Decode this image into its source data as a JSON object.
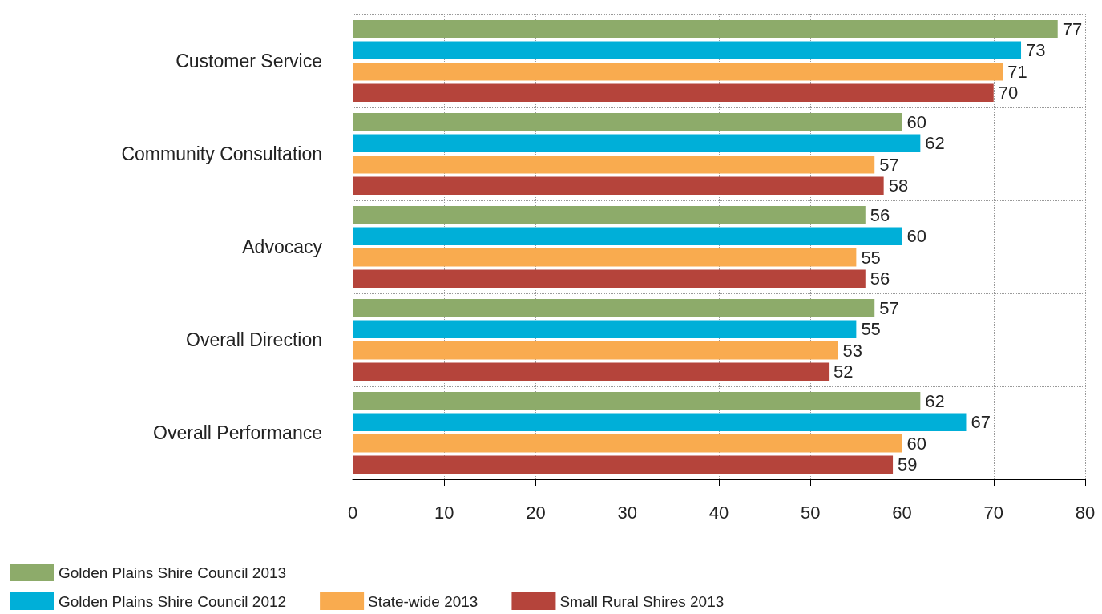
{
  "chart_data": {
    "type": "bar",
    "orientation": "horizontal",
    "categories": [
      "Customer Service",
      "Community Consultation",
      "Advocacy",
      "Overall Direction",
      "Overall Performance"
    ],
    "series": [
      {
        "name": "Golden Plains Shire Council 2013",
        "color": "#8dab6a",
        "values": [
          77,
          60,
          56,
          57,
          62
        ]
      },
      {
        "name": "Golden Plains Shire Council 2012",
        "color": "#00afd8",
        "values": [
          73,
          62,
          60,
          55,
          67
        ]
      },
      {
        "name": "State-wide 2013",
        "color": "#f9ab4f",
        "values": [
          71,
          57,
          55,
          53,
          60
        ]
      },
      {
        "name": "Small Rural Shires 2013",
        "color": "#b5443b",
        "values": [
          70,
          58,
          56,
          52,
          59
        ]
      }
    ],
    "xlim": [
      0,
      80
    ],
    "xticks": [
      0,
      10,
      20,
      30,
      40,
      50,
      60,
      70,
      80
    ],
    "data_labels": true,
    "grid": true,
    "legend": "bottom left"
  }
}
